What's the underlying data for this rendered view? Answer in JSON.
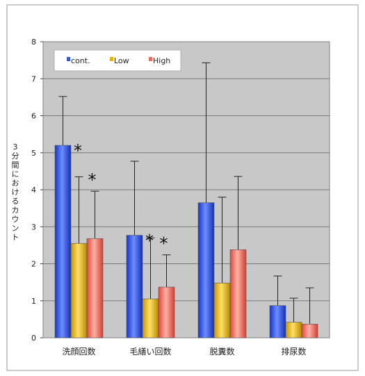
{
  "chart_data": {
    "type": "bar",
    "title": "",
    "xlabel": "",
    "ylabel": "3分間におけるカウント",
    "ylim": [
      0,
      8
    ],
    "yticks": [
      0,
      1,
      2,
      3,
      4,
      5,
      6,
      7,
      8
    ],
    "grid": true,
    "legend_position": "top-left",
    "categories": [
      "洗顔回数",
      "毛繕い回数",
      "脱糞数",
      "排尿数"
    ],
    "series": [
      {
        "name": "cont.",
        "color": "#2F55E6",
        "values": [
          5.2,
          2.77,
          3.65,
          0.87
        ],
        "errors": [
          1.32,
          2.0,
          3.78,
          0.8
        ]
      },
      {
        "name": "Low",
        "color": "#E8B400",
        "values": [
          2.55,
          1.05,
          1.48,
          0.42
        ],
        "errors": [
          1.8,
          1.65,
          2.32,
          0.65
        ]
      },
      {
        "name": "High",
        "color": "#F26A5C",
        "values": [
          2.68,
          1.37,
          2.38,
          0.37
        ],
        "errors": [
          1.28,
          0.87,
          1.98,
          0.98
        ]
      }
    ],
    "annotations": [
      {
        "text": "*",
        "category": 0,
        "series": 0
      },
      {
        "text": "*",
        "category": 0,
        "series": 2
      },
      {
        "text": "*",
        "category": 1,
        "series": 0
      },
      {
        "text": "*",
        "category": 1,
        "series": 2
      }
    ]
  }
}
